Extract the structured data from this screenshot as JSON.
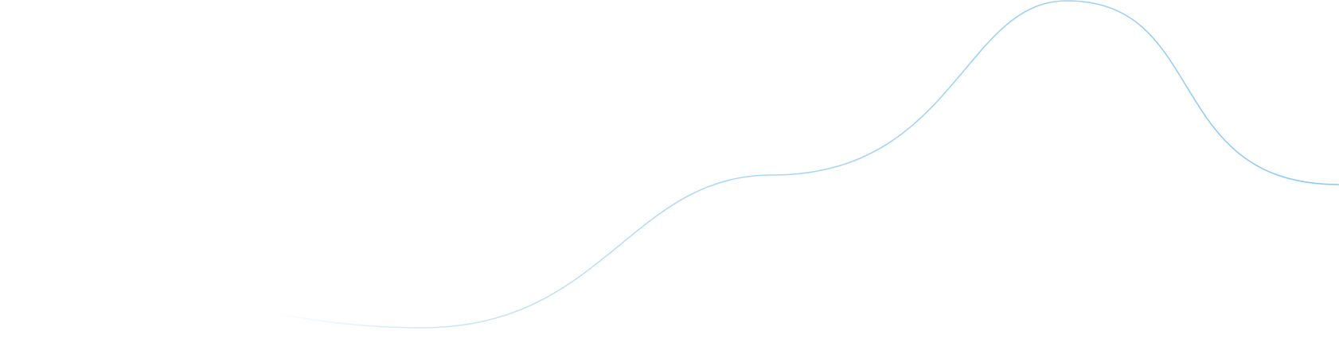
{
  "decoration": {
    "type": "wave-line",
    "stroke_color": "#90CAF9",
    "background_color": "#FFFFFF",
    "fade": "transparent-left-to-opaque-right"
  }
}
